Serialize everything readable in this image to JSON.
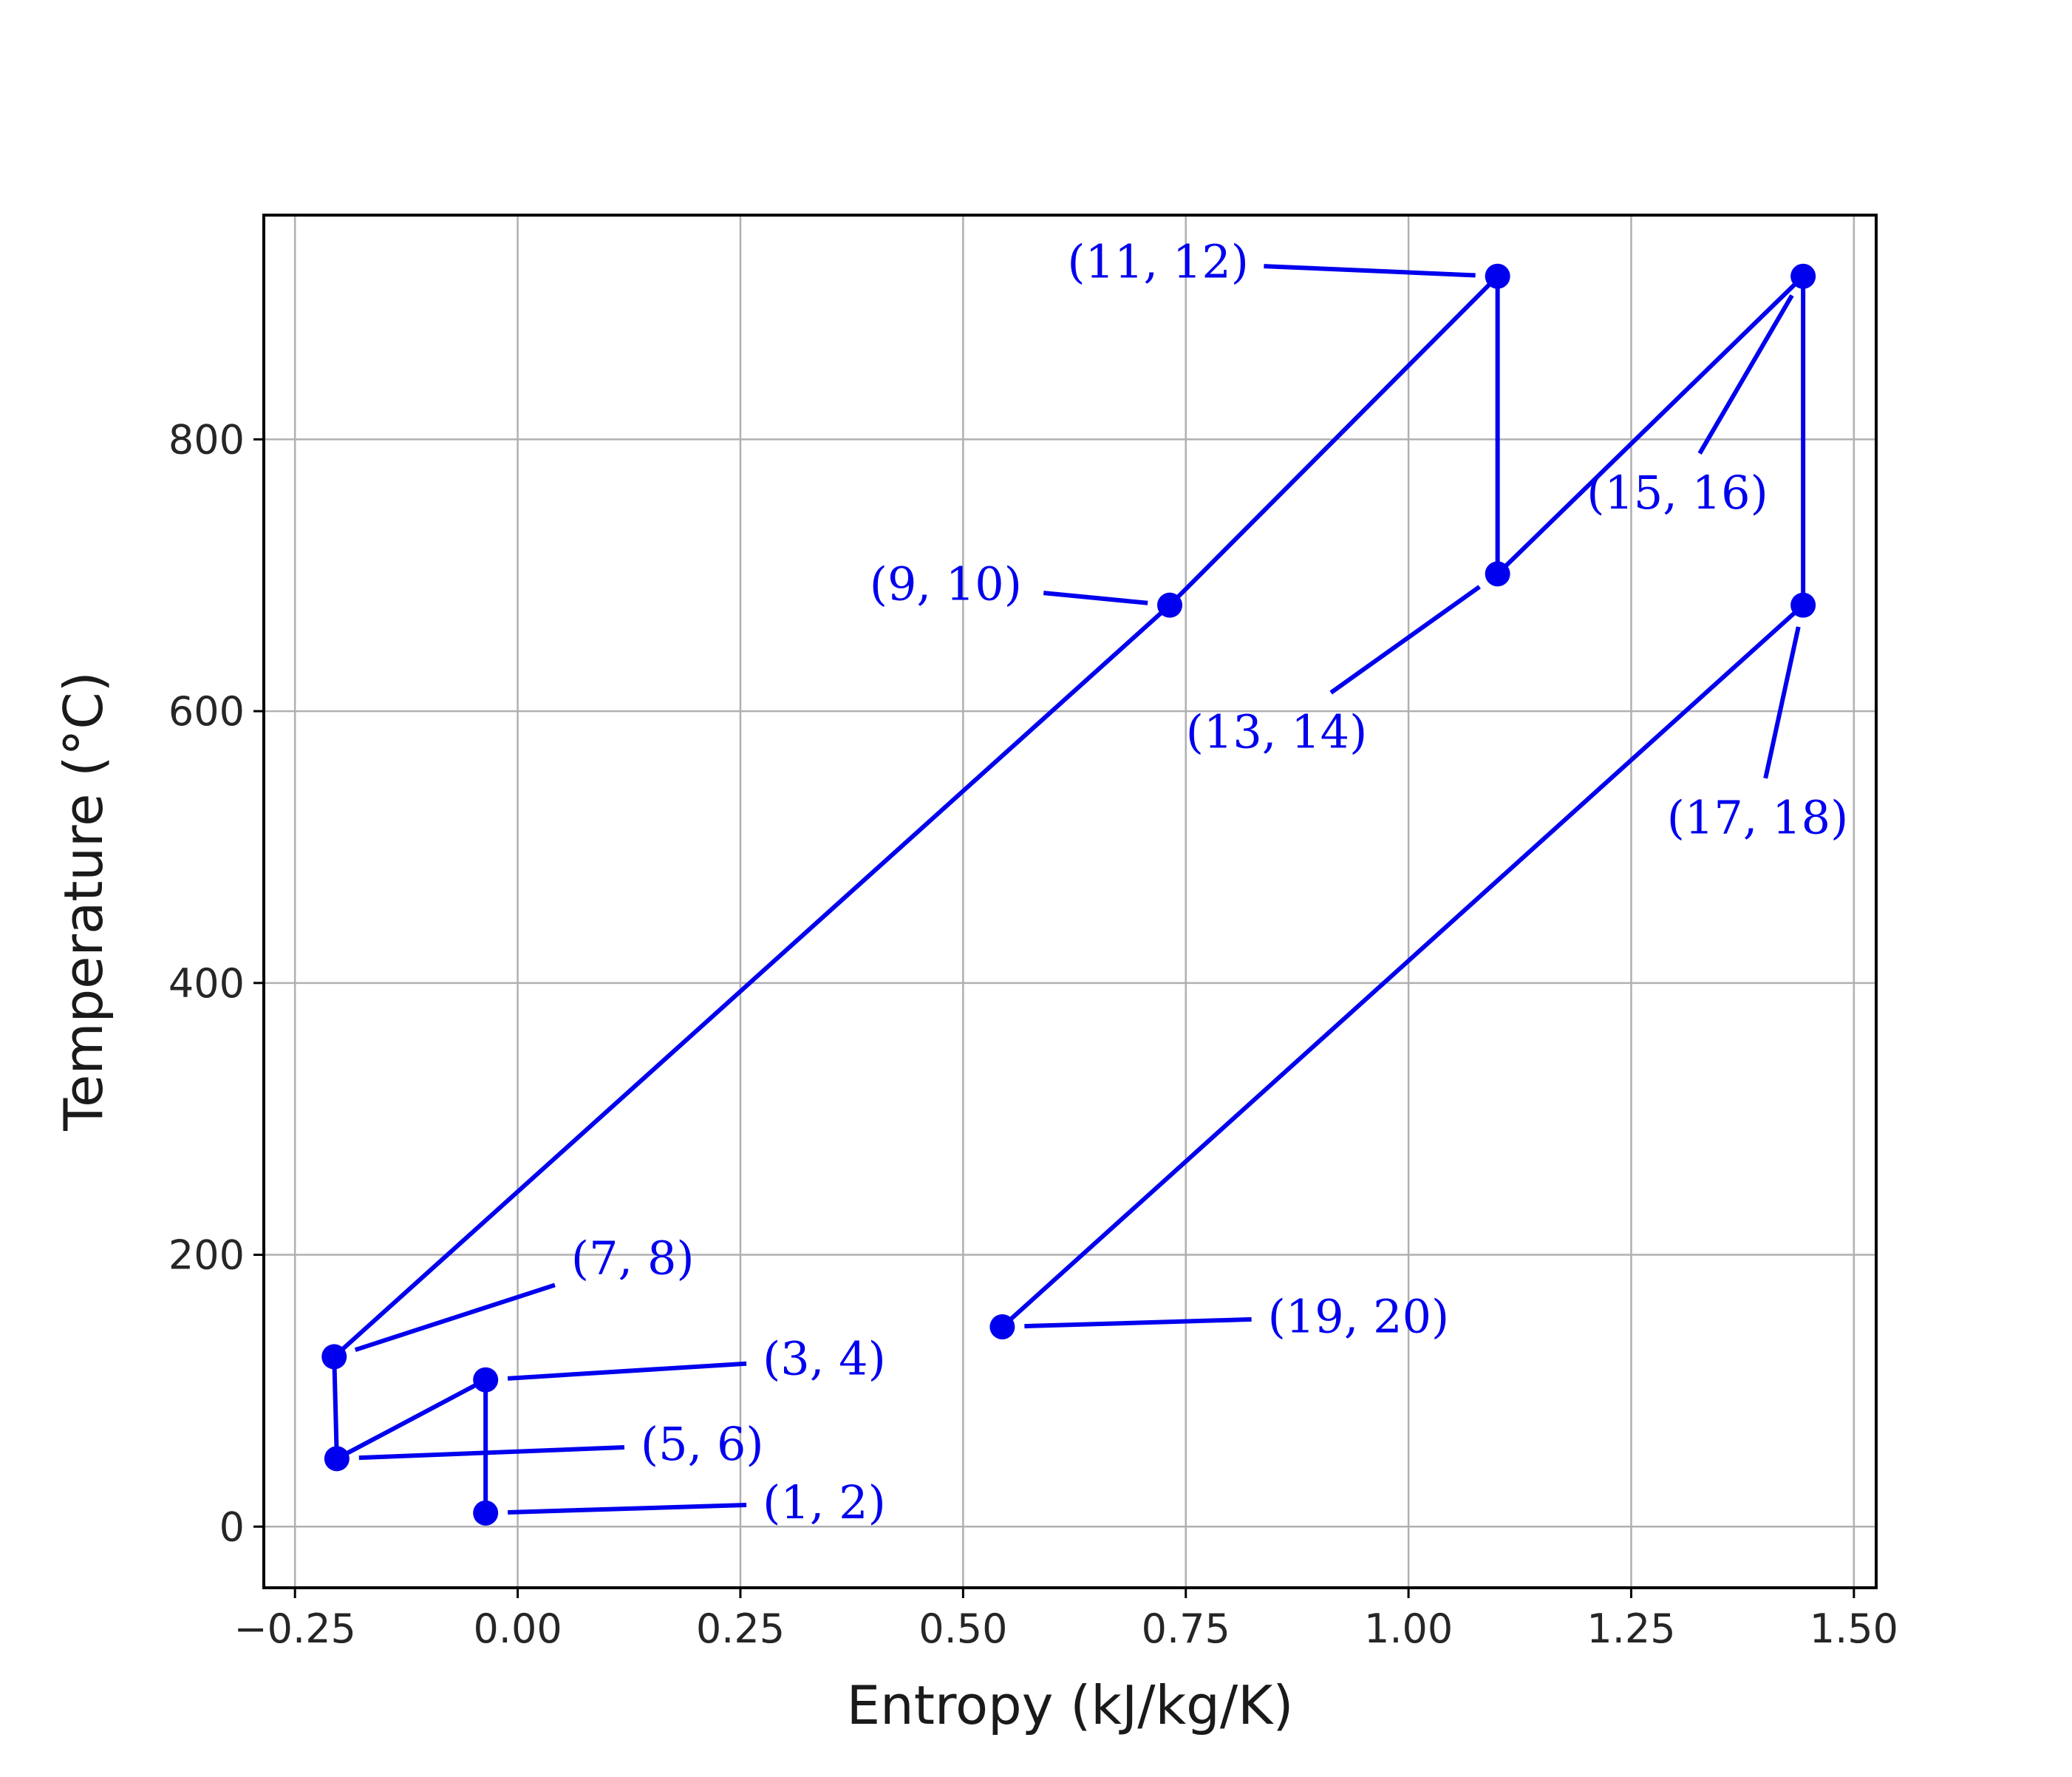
{
  "chart_data": {
    "type": "line",
    "title": "",
    "xlabel": "Entropy (kJ/kg/K)",
    "ylabel": "Temperature (°C)",
    "xlim": [
      -0.285,
      1.525
    ],
    "ylim": [
      -45,
      965
    ],
    "grid": true,
    "line_color": "#0000ee",
    "xticks": [
      {
        "value": -0.25,
        "label": "−0.25"
      },
      {
        "value": 0.0,
        "label": "0.00"
      },
      {
        "value": 0.25,
        "label": "0.25"
      },
      {
        "value": 0.5,
        "label": "0.50"
      },
      {
        "value": 0.75,
        "label": "0.75"
      },
      {
        "value": 1.0,
        "label": "1.00"
      },
      {
        "value": 1.25,
        "label": "1.25"
      },
      {
        "value": 1.5,
        "label": "1.50"
      }
    ],
    "yticks": [
      {
        "value": 0,
        "label": "0"
      },
      {
        "value": 200,
        "label": "200"
      },
      {
        "value": 400,
        "label": "400"
      },
      {
        "value": 600,
        "label": "600"
      },
      {
        "value": 800,
        "label": "800"
      }
    ],
    "points": [
      {
        "x": -0.036,
        "y": 10
      },
      {
        "x": -0.036,
        "y": 108
      },
      {
        "x": -0.203,
        "y": 50
      },
      {
        "x": -0.206,
        "y": 125
      },
      {
        "x": 0.732,
        "y": 678
      },
      {
        "x": 1.1,
        "y": 920
      },
      {
        "x": 1.1,
        "y": 701
      },
      {
        "x": 1.443,
        "y": 920
      },
      {
        "x": 1.443,
        "y": 678
      },
      {
        "x": 0.544,
        "y": 147
      }
    ],
    "annotations": [
      {
        "text": "(1, 2)",
        "point": 0,
        "tx": 0.275,
        "ty": 6
      },
      {
        "text": "(3, 4)",
        "point": 1,
        "tx": 0.275,
        "ty": 112
      },
      {
        "text": "(5, 6)",
        "point": 2,
        "tx": 0.138,
        "ty": 49
      },
      {
        "text": "(7, 8)",
        "point": 3,
        "tx": 0.06,
        "ty": 186
      },
      {
        "text": "(9, 10)",
        "point": 4,
        "tx": 0.395,
        "ty": 682
      },
      {
        "text": "(11, 12)",
        "point": 5,
        "tx": 0.617,
        "ty": 919
      },
      {
        "text": "(13, 14)",
        "point": 6,
        "tx": 0.75,
        "ty": 573
      },
      {
        "text": "(15, 16)",
        "point": 7,
        "tx": 1.2,
        "ty": 749
      },
      {
        "text": "(17, 18)",
        "point": 8,
        "tx": 1.29,
        "ty": 510
      },
      {
        "text": "(19, 20)",
        "point": 9,
        "tx": 0.842,
        "ty": 143
      }
    ]
  }
}
